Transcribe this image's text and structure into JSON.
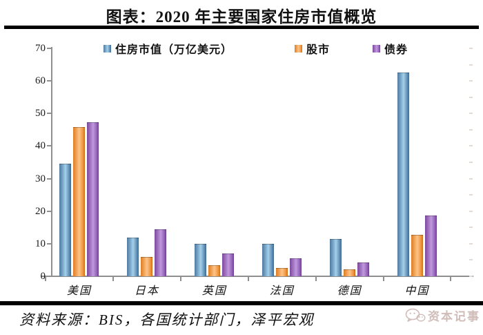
{
  "page": {
    "title": "图表：2020 年主要国家住房市值概览",
    "source_note": "资料来源：BIS，各国统计部门，泽平宏观",
    "watermark_text": "资本记事"
  },
  "colors": {
    "series_housing": "#6ea2c8",
    "series_stock": "#f29b51",
    "series_bond": "#9e68c2",
    "axis": "#8f8f8f",
    "divider_rule": "#000000",
    "watermark": "#ccb6b2"
  },
  "chart_data": {
    "type": "bar",
    "title": "2020 年主要国家住房市值概览",
    "categories": [
      "美国",
      "日本",
      "英国",
      "法国",
      "德国",
      "中国"
    ],
    "series": [
      {
        "name": "住房市值（万亿美元）",
        "color": "#6ea2c8",
        "values": [
          34.5,
          11.8,
          10.0,
          10.0,
          11.4,
          62.6
        ]
      },
      {
        "name": "股市",
        "color": "#f29b51",
        "values": [
          45.8,
          6.0,
          3.3,
          2.5,
          2.1,
          12.8
        ]
      },
      {
        "name": "债券",
        "color": "#9e68c2",
        "values": [
          47.3,
          14.5,
          7.0,
          5.5,
          4.2,
          18.6
        ]
      }
    ],
    "xlabel": "",
    "ylabel": "",
    "ylim": [
      0,
      70
    ],
    "y_ticks": [
      0,
      10,
      20,
      30,
      40,
      50,
      60,
      70
    ],
    "right_minor_tick_step": 5,
    "grid": false,
    "legend_position": "top-inside"
  }
}
